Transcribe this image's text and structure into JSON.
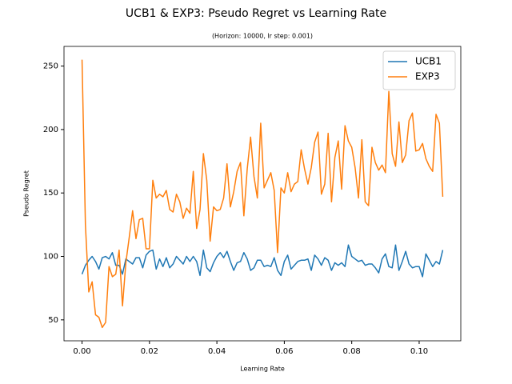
{
  "chart_data": {
    "type": "line",
    "title": "UCB1 & EXP3: Pseudo Regret vs Learning Rate",
    "subtitle": "(Horizon: 10000, lr step: 0.001)",
    "x_label": "Learning Rate",
    "y_label": "Pseudo Regret",
    "x": [
      0.0,
      0.001,
      0.002,
      0.003,
      0.004,
      0.005,
      0.006,
      0.007,
      0.008,
      0.009,
      0.01,
      0.011,
      0.012,
      0.013,
      0.014,
      0.015,
      0.016,
      0.017,
      0.018,
      0.019,
      0.02,
      0.021,
      0.022,
      0.023,
      0.024,
      0.025,
      0.026,
      0.027,
      0.028,
      0.029,
      0.03,
      0.031,
      0.032,
      0.033,
      0.034,
      0.035,
      0.036,
      0.037,
      0.038,
      0.039,
      0.04,
      0.041,
      0.042,
      0.043,
      0.044,
      0.045,
      0.046,
      0.047,
      0.048,
      0.049,
      0.05,
      0.051,
      0.052,
      0.053,
      0.054,
      0.055,
      0.056,
      0.057,
      0.058,
      0.059,
      0.06,
      0.061,
      0.062,
      0.063,
      0.064,
      0.065,
      0.066,
      0.067,
      0.068,
      0.069,
      0.07,
      0.071,
      0.072,
      0.073,
      0.074,
      0.075,
      0.076,
      0.077,
      0.078,
      0.079,
      0.08,
      0.081,
      0.082,
      0.083,
      0.084,
      0.085,
      0.086,
      0.087,
      0.088,
      0.089,
      0.09,
      0.091,
      0.092,
      0.093,
      0.094,
      0.095,
      0.096,
      0.097,
      0.098,
      0.099,
      0.1,
      0.101,
      0.102,
      0.103,
      0.104,
      0.105,
      0.106,
      0.107
    ],
    "series": [
      {
        "name": "UCB1",
        "color": "#1f77b4",
        "values": [
          86,
          93,
          97,
          100,
          96,
          90,
          99,
          100,
          98,
          103,
          93,
          93,
          86,
          98,
          96,
          94,
          99,
          99,
          91,
          101,
          104,
          105,
          90,
          98,
          92,
          99,
          91,
          94,
          100,
          97,
          94,
          100,
          96,
          100,
          96,
          85,
          105,
          91,
          88,
          95,
          100,
          103,
          99,
          104,
          96,
          89,
          95,
          96,
          103,
          98,
          89,
          91,
          97,
          97,
          92,
          93,
          92,
          99,
          89,
          85,
          96,
          101,
          90,
          93,
          96,
          97,
          97,
          98,
          89,
          101,
          98,
          93,
          99,
          97,
          89,
          95,
          93,
          95,
          92,
          109,
          100,
          98,
          96,
          97,
          93,
          94,
          94,
          91,
          87,
          98,
          102,
          92,
          91,
          109,
          89,
          96,
          104,
          94,
          91,
          92,
          92,
          84,
          102,
          97,
          92,
          96,
          94,
          105
        ]
      },
      {
        "name": "EXP3",
        "color": "#ff7f0e",
        "values": [
          255,
          125,
          72,
          80,
          54,
          52,
          44,
          48,
          92,
          84,
          86,
          105,
          61,
          95,
          115,
          136,
          114,
          129,
          130,
          106,
          106,
          160,
          146,
          149,
          147,
          152,
          137,
          135,
          149,
          143,
          130,
          138,
          134,
          167,
          122,
          137,
          181,
          160,
          112,
          139,
          136,
          137,
          146,
          173,
          139,
          151,
          167,
          174,
          132,
          169,
          194,
          163,
          146,
          205,
          154,
          160,
          166,
          152,
          103,
          154,
          150,
          166,
          151,
          157,
          159,
          184,
          169,
          157,
          170,
          190,
          198,
          149,
          157,
          197,
          143,
          178,
          191,
          153,
          203,
          191,
          186,
          170,
          146,
          192,
          143,
          140,
          186,
          174,
          168,
          172,
          166,
          230,
          181,
          171,
          206,
          174,
          180,
          207,
          213,
          183,
          184,
          189,
          177,
          171,
          167,
          212,
          205,
          147
        ]
      }
    ],
    "xlim": [
      -0.00535,
      0.11235
    ],
    "ylim": [
      33.5,
      265.5
    ],
    "xticks": [
      {
        "value": 0,
        "label": "0.00"
      },
      {
        "value": 0.02,
        "label": "0.02"
      },
      {
        "value": 0.04,
        "label": "0.04"
      },
      {
        "value": 0.06,
        "label": "0.06"
      },
      {
        "value": 0.08,
        "label": "0.08"
      },
      {
        "value": 0.1,
        "label": "0.10"
      }
    ],
    "yticks": [
      50,
      100,
      150,
      200,
      250
    ],
    "legend": "upper right",
    "grid": false
  }
}
